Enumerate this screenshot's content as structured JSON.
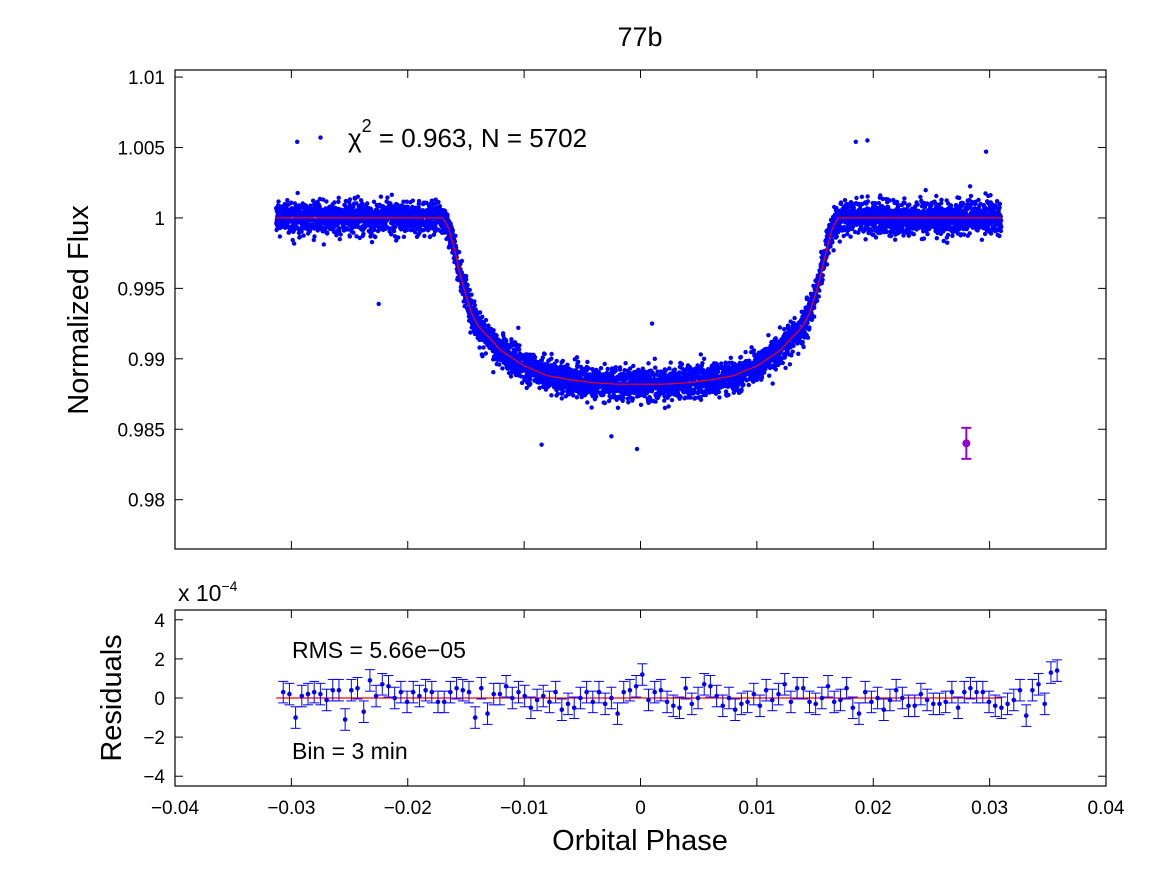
{
  "chart_data": [
    {
      "id": "transit",
      "type": "scatter",
      "title": "77b",
      "xlabel": "",
      "ylabel": "Normalized Flux",
      "xlim": [
        -0.04,
        0.04
      ],
      "ylim": [
        0.9765,
        1.0105
      ],
      "xticks": [
        -0.04,
        -0.03,
        -0.02,
        -0.01,
        0,
        0.01,
        0.02,
        0.03,
        0.04
      ],
      "yticks": [
        0.98,
        0.985,
        0.99,
        0.995,
        1,
        1.005,
        1.01
      ],
      "ytick_labels": [
        "0.98",
        "0.985",
        "0.99",
        "0.995",
        "1",
        "1.005",
        "1.01"
      ],
      "annotation": {
        "chi_symbol": "χ",
        "chi_exponent": "2",
        "chi_text": " = 0.963, N = 5702"
      },
      "model": {
        "name": "transit model",
        "color": "#ff0000",
        "points": [
          [
            -0.0313,
            1.0
          ],
          [
            -0.017,
            1.0
          ],
          [
            -0.0165,
            0.9993
          ],
          [
            -0.016,
            0.9978
          ],
          [
            -0.0155,
            0.996
          ],
          [
            -0.015,
            0.9945
          ],
          [
            -0.0145,
            0.9932
          ],
          [
            -0.014,
            0.9924
          ],
          [
            -0.0135,
            0.9919
          ],
          [
            -0.013,
            0.9915
          ],
          [
            -0.012,
            0.9906
          ],
          [
            -0.01,
            0.9895
          ],
          [
            -0.008,
            0.9888
          ],
          [
            -0.006,
            0.9885
          ],
          [
            -0.004,
            0.9883
          ],
          [
            -0.002,
            0.9882
          ],
          [
            0.0,
            0.9882
          ],
          [
            0.002,
            0.9882
          ],
          [
            0.004,
            0.9883
          ],
          [
            0.006,
            0.9885
          ],
          [
            0.008,
            0.9888
          ],
          [
            0.01,
            0.9895
          ],
          [
            0.012,
            0.9906
          ],
          [
            0.013,
            0.9915
          ],
          [
            0.0135,
            0.9919
          ],
          [
            0.014,
            0.9924
          ],
          [
            0.0145,
            0.9932
          ],
          [
            0.015,
            0.9945
          ],
          [
            0.0155,
            0.996
          ],
          [
            0.016,
            0.9978
          ],
          [
            0.0165,
            0.9993
          ],
          [
            0.017,
            1.0
          ],
          [
            0.031,
            1.0
          ]
        ]
      },
      "data_series": {
        "name": "observations",
        "color": "#0000ff",
        "count": 5702,
        "x_range": [
          -0.0313,
          0.031
        ],
        "scatter_sigma": 0.0009,
        "outliers": [
          [
            -0.0295,
            1.0054
          ],
          [
            -0.0275,
            1.0057
          ],
          [
            -0.0225,
            0.9939
          ],
          [
            0.0185,
            1.0054
          ],
          [
            0.0195,
            1.0055
          ],
          [
            0.0297,
            1.0047
          ],
          [
            -0.0085,
            0.9839
          ],
          [
            -0.0025,
            0.9845
          ],
          [
            -0.0003,
            0.9836
          ],
          [
            -0.0105,
            0.9922
          ],
          [
            0.001,
            0.9925
          ]
        ]
      },
      "error_marker": {
        "name": "typical error bar",
        "color": "#9400d3",
        "x": 0.028,
        "y": 0.984,
        "err": 0.0011
      }
    },
    {
      "id": "residuals",
      "type": "scatter",
      "title": "",
      "xlabel": "Orbital Phase",
      "ylabel": "Residuals",
      "scale_label": "x 10",
      "scale_exponent": "−4",
      "xlim": [
        -0.04,
        0.04
      ],
      "ylim": [
        -4.5,
        4.5
      ],
      "xticks": [
        -0.04,
        -0.03,
        -0.02,
        -0.01,
        0,
        0.01,
        0.02,
        0.03,
        0.04
      ],
      "xtick_labels": [
        "−0.04",
        "−0.03",
        "−0.02",
        "−0.01",
        "0",
        "0.01",
        "0.02",
        "0.03",
        "0.04"
      ],
      "yticks": [
        -4,
        -2,
        0,
        2,
        4
      ],
      "ytick_labels": [
        "−4",
        "−2",
        "0",
        "2",
        "4"
      ],
      "rms_text": "RMS = 5.66e−05",
      "bin_text": "Bin = 3 min",
      "zero_line_color": "#ff0000",
      "point_color": "#0000ff",
      "error": 0.55,
      "x_start": -0.0307,
      "x_step": 0.000532,
      "values": [
        0.3,
        0.2,
        -1.0,
        0.1,
        0.2,
        0.3,
        0.2,
        -0.1,
        0.4,
        0.4,
        -1.1,
        0.4,
        0.5,
        -0.7,
        0.9,
        0.1,
        0.7,
        0.6,
        0.0,
        0.3,
        -0.2,
        0.3,
        0.1,
        0.4,
        0.3,
        -0.2,
        -0.2,
        0.3,
        0.5,
        0.4,
        0.3,
        -1.0,
        0.5,
        -0.8,
        0.2,
        0.2,
        0.6,
        0.0,
        0.3,
        0.1,
        -0.5,
        -0.1,
        0.1,
        -0.2,
        0.3,
        -0.6,
        -0.3,
        -0.5,
        0.0,
        0.3,
        -0.2,
        0.3,
        -0.3,
        0.0,
        -0.8,
        0.3,
        0.4,
        0.6,
        1.2,
        -0.1,
        0.3,
        0.4,
        -0.2,
        -0.4,
        -0.5,
        0.5,
        -0.3,
        0.0,
        0.7,
        0.6,
        0.1,
        -0.4,
        0.0,
        -0.6,
        -0.3,
        -0.2,
        0.2,
        -0.4,
        0.4,
        -0.1,
        0.2,
        0.7,
        -0.2,
        0.5,
        0.5,
        -0.2,
        -0.3,
        0.0,
        0.6,
        -0.2,
        -0.1,
        0.5,
        -0.5,
        -0.8,
        0.3,
        -0.2,
        0.0,
        -0.6,
        -0.1,
        0.4,
        0.0,
        -0.4,
        -0.4,
        0.2,
        -0.1,
        -0.3,
        -0.3,
        -0.2,
        0.3,
        -0.5,
        0.3,
        0.5,
        0.3,
        0.3,
        -0.2,
        -0.4,
        -0.5,
        -0.3,
        -0.1,
        0.4,
        -0.9,
        0.4,
        0.7,
        -0.3,
        1.3,
        1.4
      ]
    }
  ]
}
